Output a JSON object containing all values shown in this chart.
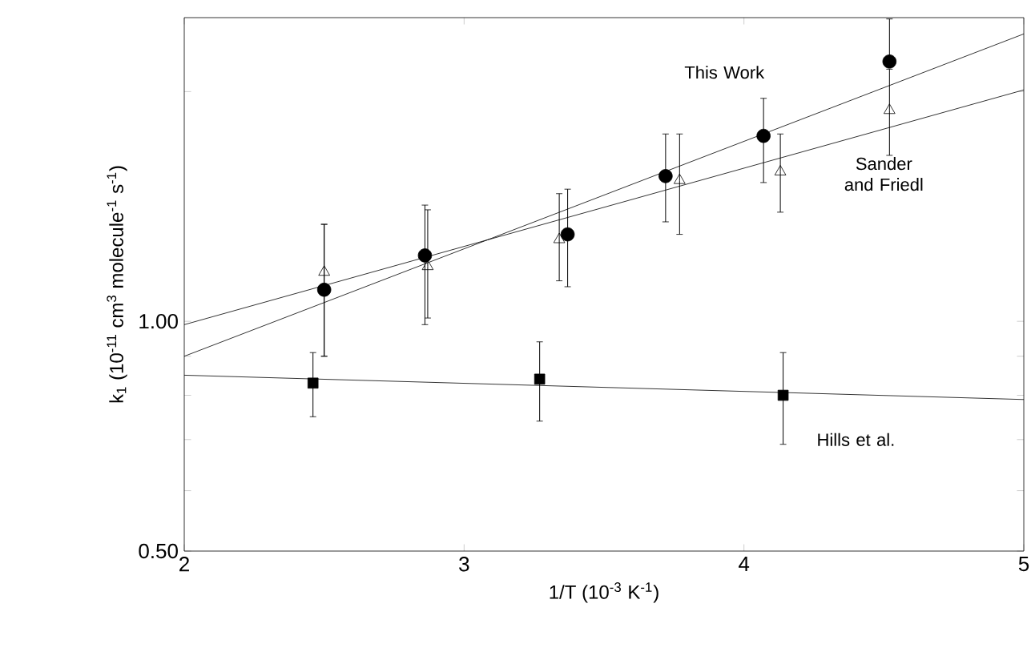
{
  "chart_data": {
    "type": "scatter",
    "xlabel": "1/T (10$^{-3}$ K$^{-1}$)",
    "ylabel": "k$_{1}$ (10$^{-11}$ cm$^{3}$ molecule$^{-1}$ s$^{-1}$)",
    "log": "y",
    "xlim": [
      2,
      5
    ],
    "ylim": [
      0.5,
      2.5
    ],
    "xticks": [
      2,
      3,
      4,
      5
    ],
    "yticks": [
      {
        "value": 0.5,
        "label": "0.50"
      },
      {
        "value": 0.6,
        "label": null
      },
      {
        "value": 0.7,
        "label": null
      },
      {
        "value": 0.8,
        "label": null
      },
      {
        "value": 0.9,
        "label": null
      },
      {
        "value": 1,
        "label": "1.00"
      },
      {
        "value": 2,
        "label": null
      }
    ],
    "grid": false,
    "series": [
      {
        "name": "This Work",
        "marker": "circle",
        "color": "#000000",
        "x": [
          2.5,
          2.86,
          3.37,
          3.72,
          4.07,
          4.52
        ],
        "values": [
          1.1,
          1.22,
          1.3,
          1.55,
          1.75,
          2.19
        ],
        "errors": [
          [
            0.9,
            1.34
          ],
          [
            0.99,
            1.42
          ],
          [
            1.11,
            1.49
          ],
          [
            1.35,
            1.76
          ],
          [
            1.52,
            1.96
          ],
          [
            2.19,
            2.49
          ]
        ]
      },
      {
        "name": "Sander and Friedl",
        "marker": "triangle",
        "color": "#000000",
        "x": [
          2.5,
          2.87,
          3.34,
          3.77,
          4.13,
          4.52
        ],
        "values": [
          1.16,
          1.18,
          1.28,
          1.53,
          1.57,
          1.89
        ],
        "errors": [
          [
            0.9,
            1.34
          ],
          [
            1.01,
            1.4
          ],
          [
            1.13,
            1.47
          ],
          [
            1.3,
            1.76
          ],
          [
            1.39,
            1.76
          ],
          [
            1.65,
            2.14
          ]
        ]
      },
      {
        "name": "Hills et al.",
        "marker": "square",
        "color": "#000000",
        "x": [
          2.46,
          3.27,
          4.14
        ],
        "values": [
          0.83,
          0.84,
          0.8
        ],
        "errors": [
          [
            0.75,
            0.91
          ],
          [
            0.74,
            0.94
          ],
          [
            0.69,
            0.91
          ]
        ]
      },
      {
        "type": "line",
        "marker": "none",
        "color": "#000000",
        "x": [
          2,
          5
        ],
        "values": [
          0.9,
          2.38
        ]
      },
      {
        "type": "line",
        "marker": "none",
        "color": "#000000",
        "x": [
          2,
          5
        ],
        "values": [
          0.99,
          2.01
        ]
      },
      {
        "type": "line",
        "marker": "none",
        "color": "#000000",
        "x": [
          2,
          5
        ],
        "values": [
          0.85,
          0.79
        ]
      }
    ]
  }
}
